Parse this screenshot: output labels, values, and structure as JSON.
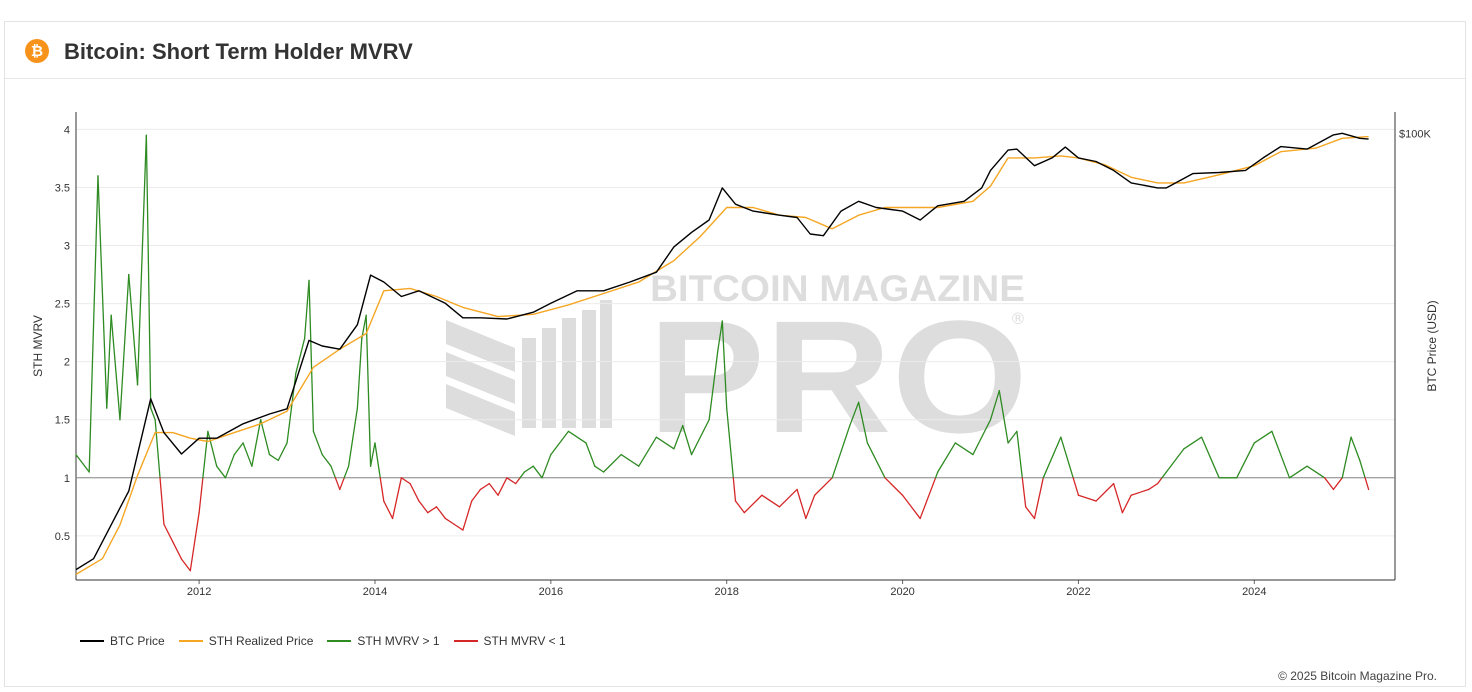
{
  "header": {
    "title": "Bitcoin: Short Term Holder MVRV",
    "logo_glyph": "₿",
    "logo_icon": "bitcoin-logo-icon",
    "accent_color": "#f7931a"
  },
  "watermark": {
    "line1": "BITCOIN MAGAZINE",
    "line2": "PRO",
    "registered": "®"
  },
  "copyright": "© 2025 Bitcoin Magazine Pro.",
  "legend": [
    {
      "label": "BTC Price",
      "color": "#000000"
    },
    {
      "label": "STH Realized Price",
      "color": "#f5a623"
    },
    {
      "label": "STH MVRV > 1",
      "color": "#2e8b22"
    },
    {
      "label": "STH MVRV < 1",
      "color": "#d62728"
    }
  ],
  "chart_data": {
    "type": "line",
    "title": "Bitcoin: Short Term Holder MVRV",
    "xlabel": "",
    "ylabel": "STH MVRV",
    "y2label": "BTC Price (USD)",
    "x_ticks": [
      "2012",
      "2014",
      "2016",
      "2018",
      "2020",
      "2022",
      "2024"
    ],
    "y_ticks": [
      "0.5",
      "1",
      "1.5",
      "2",
      "2.5",
      "3",
      "3.5",
      "4"
    ],
    "y2_ticks": [
      "$100K"
    ],
    "xlim": [
      2010.6,
      2025.6
    ],
    "ylim": [
      0.12,
      4.15
    ],
    "y2_scale": "log",
    "y2lim": [
      0.05,
      200000
    ],
    "reference_line": 1,
    "grid": true,
    "legend_position": "bottom-left",
    "series": [
      {
        "name": "STH MVRV",
        "color_above_1": "#2e8b22",
        "color_below_1": "#d62728",
        "x": [
          2010.6,
          2010.75,
          2010.85,
          2010.95,
          2011.0,
          2011.1,
          2011.2,
          2011.3,
          2011.4,
          2011.45,
          2011.5,
          2011.6,
          2011.7,
          2011.8,
          2011.9,
          2012.0,
          2012.1,
          2012.2,
          2012.3,
          2012.4,
          2012.5,
          2012.6,
          2012.7,
          2012.8,
          2012.9,
          2013.0,
          2013.1,
          2013.2,
          2013.25,
          2013.3,
          2013.4,
          2013.5,
          2013.6,
          2013.7,
          2013.8,
          2013.85,
          2013.9,
          2013.95,
          2014.0,
          2014.1,
          2014.2,
          2014.3,
          2014.4,
          2014.5,
          2014.6,
          2014.7,
          2014.8,
          2014.9,
          2015.0,
          2015.1,
          2015.2,
          2015.3,
          2015.4,
          2015.5,
          2015.6,
          2015.7,
          2015.8,
          2015.9,
          2016.0,
          2016.2,
          2016.4,
          2016.5,
          2016.6,
          2016.8,
          2017.0,
          2017.2,
          2017.4,
          2017.5,
          2017.6,
          2017.8,
          2017.9,
          2017.95,
          2018.0,
          2018.1,
          2018.2,
          2018.4,
          2018.6,
          2018.8,
          2018.9,
          2019.0,
          2019.2,
          2019.4,
          2019.5,
          2019.6,
          2019.8,
          2020.0,
          2020.2,
          2020.4,
          2020.6,
          2020.8,
          2021.0,
          2021.1,
          2021.2,
          2021.3,
          2021.4,
          2021.5,
          2021.6,
          2021.8,
          2021.9,
          2022.0,
          2022.2,
          2022.4,
          2022.5,
          2022.6,
          2022.8,
          2022.9,
          2023.0,
          2023.2,
          2023.4,
          2023.6,
          2023.8,
          2024.0,
          2024.2,
          2024.4,
          2024.6,
          2024.8,
          2024.9,
          2025.0,
          2025.1,
          2025.2,
          2025.3
        ],
        "values": [
          1.2,
          1.05,
          3.6,
          1.6,
          2.4,
          1.5,
          2.75,
          1.8,
          3.95,
          1.6,
          1.5,
          0.6,
          0.45,
          0.3,
          0.2,
          0.7,
          1.4,
          1.1,
          1.0,
          1.2,
          1.3,
          1.1,
          1.5,
          1.2,
          1.15,
          1.3,
          1.9,
          2.2,
          2.7,
          1.4,
          1.2,
          1.1,
          0.9,
          1.1,
          1.6,
          2.2,
          2.4,
          1.1,
          1.3,
          0.8,
          0.65,
          1.0,
          0.95,
          0.8,
          0.7,
          0.75,
          0.65,
          0.6,
          0.55,
          0.8,
          0.9,
          0.95,
          0.85,
          1.0,
          0.95,
          1.05,
          1.1,
          1.0,
          1.2,
          1.4,
          1.3,
          1.1,
          1.05,
          1.2,
          1.1,
          1.35,
          1.25,
          1.45,
          1.2,
          1.5,
          2.1,
          2.35,
          1.6,
          0.8,
          0.7,
          0.85,
          0.75,
          0.9,
          0.65,
          0.85,
          1.0,
          1.45,
          1.65,
          1.3,
          1.0,
          0.85,
          0.65,
          1.05,
          1.3,
          1.2,
          1.5,
          1.75,
          1.3,
          1.4,
          0.75,
          0.65,
          1.0,
          1.35,
          1.1,
          0.85,
          0.8,
          0.95,
          0.7,
          0.85,
          0.9,
          0.95,
          1.05,
          1.25,
          1.35,
          1.0,
          1.0,
          1.3,
          1.4,
          1.0,
          1.1,
          1.0,
          0.9,
          1.0,
          1.35,
          1.15,
          0.9
        ]
      },
      {
        "name": "BTC Price",
        "color": "#000000",
        "x": [
          2010.6,
          2010.8,
          2011.0,
          2011.2,
          2011.45,
          2011.6,
          2011.8,
          2012.0,
          2012.2,
          2012.5,
          2012.8,
          2013.0,
          2013.25,
          2013.4,
          2013.6,
          2013.8,
          2013.95,
          2014.1,
          2014.3,
          2014.5,
          2014.8,
          2015.0,
          2015.2,
          2015.5,
          2015.8,
          2016.0,
          2016.3,
          2016.6,
          2016.9,
          2017.2,
          2017.4,
          2017.6,
          2017.8,
          2017.95,
          2018.1,
          2018.3,
          2018.6,
          2018.8,
          2018.95,
          2019.1,
          2019.3,
          2019.5,
          2019.7,
          2020.0,
          2020.2,
          2020.4,
          2020.7,
          2020.9,
          2021.0,
          2021.2,
          2021.3,
          2021.5,
          2021.7,
          2021.85,
          2022.0,
          2022.2,
          2022.4,
          2022.6,
          2022.9,
          2023.0,
          2023.3,
          2023.6,
          2023.9,
          2024.1,
          2024.3,
          2024.6,
          2024.9,
          2025.0,
          2025.2,
          2025.3
        ],
        "values": [
          0.07,
          0.1,
          0.3,
          0.9,
          18,
          6,
          3,
          5,
          5,
          8,
          11,
          13,
          120,
          100,
          90,
          200,
          1000,
          800,
          500,
          600,
          400,
          250,
          250,
          240,
          300,
          400,
          600,
          600,
          800,
          1100,
          2500,
          4000,
          6000,
          17000,
          10000,
          8000,
          7000,
          6500,
          3800,
          3600,
          8000,
          11000,
          9000,
          8000,
          6000,
          9500,
          11000,
          17000,
          30000,
          58000,
          60000,
          35000,
          45000,
          64000,
          45000,
          40000,
          30000,
          20000,
          17000,
          17000,
          27000,
          28000,
          30000,
          45000,
          65000,
          60000,
          95000,
          100000,
          85000,
          83000
        ]
      },
      {
        "name": "STH Realized Price",
        "color": "#f5a623",
        "x": [
          2010.6,
          2010.9,
          2011.1,
          2011.3,
          2011.5,
          2011.7,
          2011.9,
          2012.1,
          2012.4,
          2012.7,
          2013.0,
          2013.3,
          2013.6,
          2013.9,
          2014.1,
          2014.4,
          2014.7,
          2015.0,
          2015.4,
          2015.8,
          2016.2,
          2016.6,
          2017.0,
          2017.4,
          2017.7,
          2018.0,
          2018.3,
          2018.6,
          2018.9,
          2019.2,
          2019.5,
          2019.8,
          2020.1,
          2020.4,
          2020.8,
          2021.0,
          2021.2,
          2021.5,
          2021.8,
          2022.0,
          2022.3,
          2022.6,
          2022.9,
          2023.2,
          2023.6,
          2024.0,
          2024.3,
          2024.7,
          2025.0,
          2025.3
        ],
        "values": [
          0.06,
          0.1,
          0.3,
          1.5,
          6,
          6,
          5,
          4.5,
          6,
          8,
          12,
          50,
          90,
          150,
          600,
          650,
          500,
          350,
          260,
          280,
          380,
          550,
          800,
          1600,
          3500,
          9000,
          9000,
          7000,
          6500,
          4500,
          7000,
          9000,
          9000,
          9000,
          11000,
          18000,
          45000,
          45000,
          48000,
          45000,
          36000,
          24000,
          20000,
          20000,
          26000,
          35000,
          55000,
          62000,
          85000,
          90000
        ]
      }
    ]
  }
}
